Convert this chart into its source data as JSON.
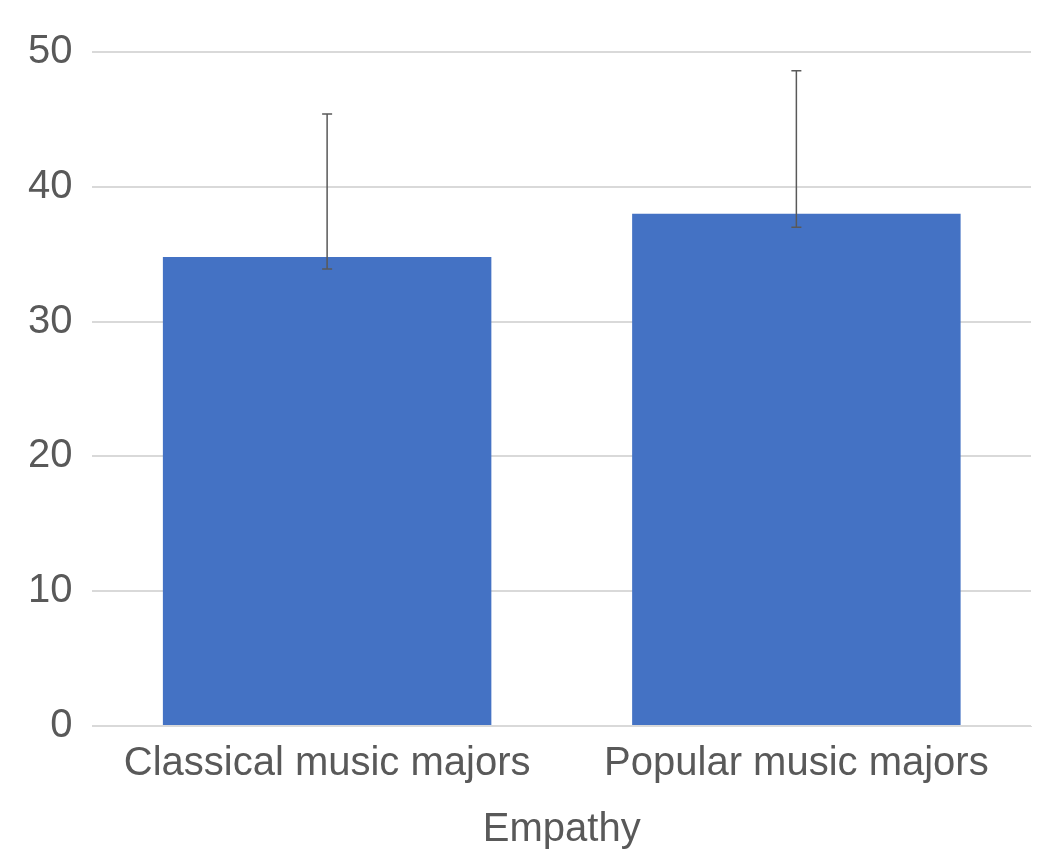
{
  "chart_data": {
    "type": "bar",
    "xlabel": "Empathy",
    "categories": [
      "Classical music majors",
      "Popular music majors"
    ],
    "values": [
      34.8,
      38.0
    ],
    "color": "#4472c4",
    "errors": [
      [
        33.9,
        45.4
      ],
      [
        37.0,
        48.6
      ]
    ],
    "ylim": [
      0,
      50
    ],
    "yticks": [
      0,
      10,
      20,
      30,
      40,
      50
    ],
    "grid": "y",
    "legend": false
  }
}
